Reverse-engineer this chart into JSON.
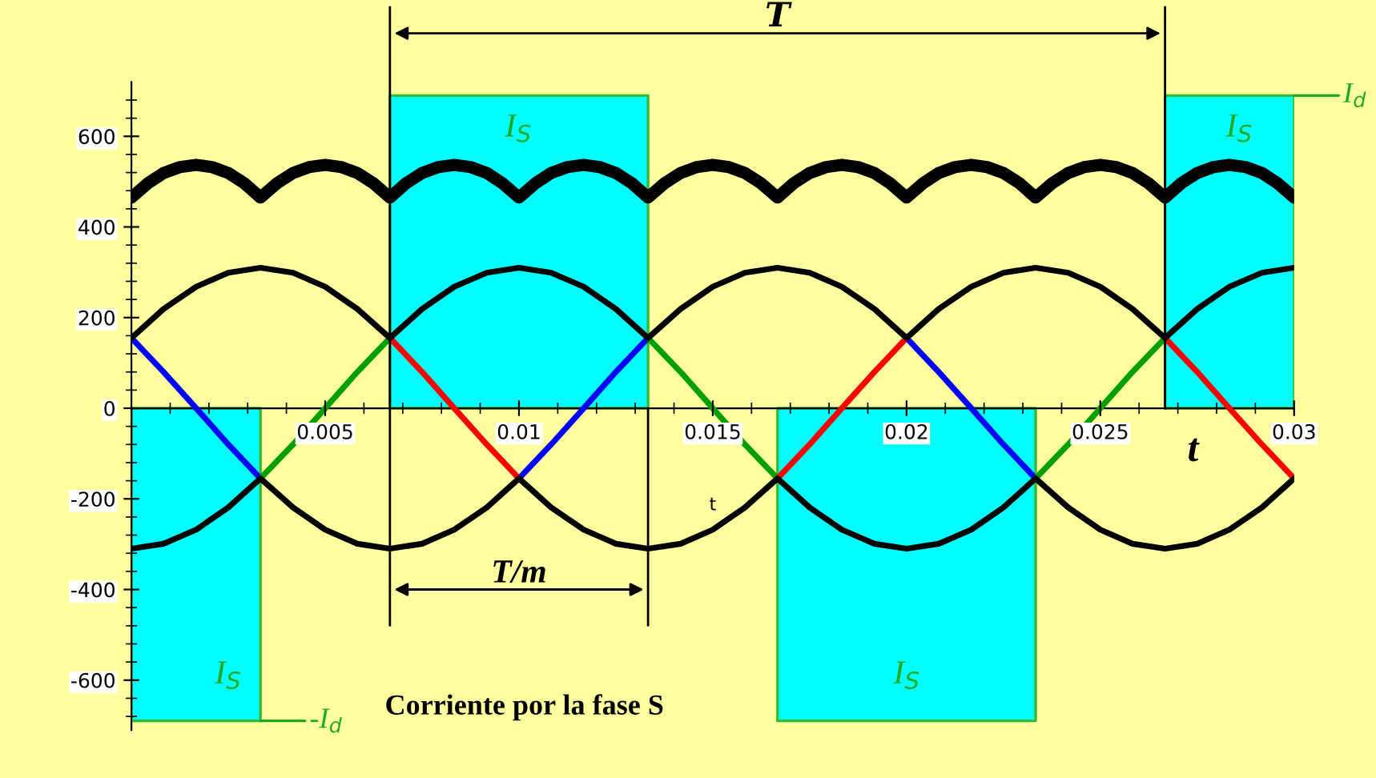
{
  "chart_data": {
    "type": "line",
    "xlabel": "t",
    "x": [
      0,
      0.00083,
      0.00167,
      0.0025,
      0.00333,
      0.00417,
      0.005,
      0.00583,
      0.00667,
      0.0075,
      0.00833,
      0.00917,
      0.01,
      0.01083,
      0.01167,
      0.0125,
      0.01333,
      0.01417,
      0.015,
      0.01583,
      0.01667,
      0.0175,
      0.01833,
      0.01917,
      0.02,
      0.02083,
      0.02167,
      0.0225,
      0.02333,
      0.02417,
      0.025,
      0.02583,
      0.02667,
      0.0275,
      0.02833,
      0.02917,
      0.03
    ],
    "series": [
      {
        "type": "area",
        "color": "#00ffff",
        "x": [
          0,
          0.00333
        ],
        "values": [
          -690,
          -690
        ]
      },
      {
        "type": "area",
        "color": "#00ffff",
        "x": [
          0.00667,
          0.01333
        ],
        "values": [
          690,
          690
        ]
      },
      {
        "type": "area",
        "color": "#00ffff",
        "x": [
          0.01667,
          0.02333
        ],
        "values": [
          -690,
          -690
        ]
      },
      {
        "type": "area",
        "color": "#00ffff",
        "x": [
          0.02667,
          0.03
        ],
        "values": [
          690,
          690
        ]
      },
      {
        "color": "#0000ff",
        "values": [
          155,
          80,
          0,
          -80,
          -155,
          null,
          null,
          null,
          null,
          null,
          null,
          null,
          -155,
          -80,
          0,
          80,
          155,
          null,
          null,
          null,
          null,
          null,
          null,
          null,
          155,
          80,
          0,
          -80,
          -155,
          null,
          null,
          null,
          null,
          null,
          null,
          null,
          null
        ]
      },
      {
        "color": "#00a000",
        "values": [
          null,
          null,
          null,
          null,
          -155,
          -80,
          0,
          80,
          155,
          null,
          null,
          null,
          null,
          null,
          null,
          null,
          155,
          80,
          0,
          -80,
          -155,
          null,
          null,
          null,
          null,
          null,
          null,
          null,
          -155,
          -80,
          0,
          80,
          155,
          null,
          null,
          null,
          null
        ]
      },
      {
        "color": "#ff0000",
        "values": [
          null,
          null,
          null,
          null,
          null,
          null,
          null,
          null,
          155,
          80,
          0,
          -80,
          -155,
          null,
          null,
          null,
          null,
          null,
          null,
          null,
          -155,
          -80,
          0,
          80,
          155,
          null,
          null,
          null,
          null,
          null,
          null,
          null,
          155,
          80,
          0,
          -80,
          -155
        ]
      },
      {
        "color": "#000000",
        "values": [
          155,
          219,
          268,
          299,
          310,
          299,
          268,
          219,
          155,
          219,
          268,
          299,
          310,
          299,
          268,
          219,
          155,
          219,
          268,
          299,
          310,
          299,
          268,
          219,
          155,
          219,
          268,
          299,
          310,
          299,
          268,
          219,
          155,
          219,
          268,
          299,
          310
        ]
      },
      {
        "color": "#000000",
        "values": [
          -310,
          -299,
          -268,
          -219,
          -155,
          -219,
          -268,
          -299,
          -310,
          -299,
          -268,
          -219,
          -155,
          -219,
          -268,
          -299,
          -310,
          -299,
          -268,
          -219,
          -155,
          -219,
          -268,
          -299,
          -310,
          -299,
          -268,
          -219,
          -155,
          -219,
          -268,
          -299,
          -310,
          -299,
          -268,
          -219,
          -155
        ]
      },
      {
        "color": "#000000",
        "x": [
          0,
          0.00042,
          0.00083,
          0.00125,
          0.00167,
          0.00208,
          0.0025,
          0.00292,
          0.00333,
          0.00375,
          0.00417,
          0.00458,
          0.005,
          0.00542,
          0.00583,
          0.00625,
          0.00667,
          0.00708,
          0.0075,
          0.00792,
          0.00833,
          0.00875,
          0.00917,
          0.00958,
          0.01,
          0.01042,
          0.01083,
          0.01125,
          0.01167,
          0.01208,
          0.0125,
          0.01292,
          0.01333,
          0.01375,
          0.01417,
          0.01458,
          0.015,
          0.01542,
          0.01583,
          0.01625,
          0.01667,
          0.01708,
          0.0175,
          0.01792,
          0.01833,
          0.01875,
          0.01917,
          0.01958,
          0.02,
          0.02042,
          0.02083,
          0.02125,
          0.02167,
          0.02208,
          0.0225,
          0.02292,
          0.02333,
          0.02375,
          0.02417,
          0.02458,
          0.025,
          0.02542,
          0.02583,
          0.02625,
          0.02667,
          0.02708,
          0.0275,
          0.02792,
          0.02833,
          0.02875,
          0.02917,
          0.02958,
          0.03
        ],
        "values": [
          465,
          496,
          519,
          532,
          537,
          532,
          519,
          496,
          465,
          496,
          519,
          532,
          537,
          532,
          519,
          496,
          465,
          496,
          519,
          532,
          537,
          532,
          519,
          496,
          465,
          496,
          519,
          532,
          537,
          532,
          519,
          496,
          465,
          496,
          519,
          532,
          537,
          532,
          519,
          496,
          465,
          496,
          519,
          532,
          537,
          532,
          519,
          496,
          465,
          496,
          519,
          532,
          537,
          532,
          519,
          496,
          465,
          496,
          519,
          532,
          537,
          532,
          519,
          496,
          465,
          496,
          519,
          532,
          537,
          532,
          519,
          496,
          465
        ]
      }
    ],
    "xlim": [
      0,
      0.03
    ],
    "xticks": [
      0.005,
      0.01,
      0.015,
      0.02,
      0.025,
      0.03
    ],
    "ylim": [
      -710,
      720
    ],
    "yticks": [
      -600,
      -400,
      -200,
      0,
      200,
      400,
      600
    ],
    "ref_lines": [
      {
        "axis": "x",
        "value": 0.00667,
        "color": "#000000"
      },
      {
        "axis": "x",
        "value": 0.01333,
        "color": "#000000"
      },
      {
        "axis": "x",
        "value": 0.02667,
        "color": "#000000"
      }
    ],
    "annotations": [
      "T",
      "T/m",
      "I$_{S}$",
      "I$_{S}$",
      "I$_{S}$",
      "I$_{S}$",
      {
        "text": "I$_{d}$",
        "x": 0.03,
        "y": 690
      },
      {
        "text": "-I$_{d}$",
        "x": 0.00333,
        "y": -690
      },
      "Corriente por la fase S",
      "t"
    ],
    "grid": false,
    "legend": false
  }
}
